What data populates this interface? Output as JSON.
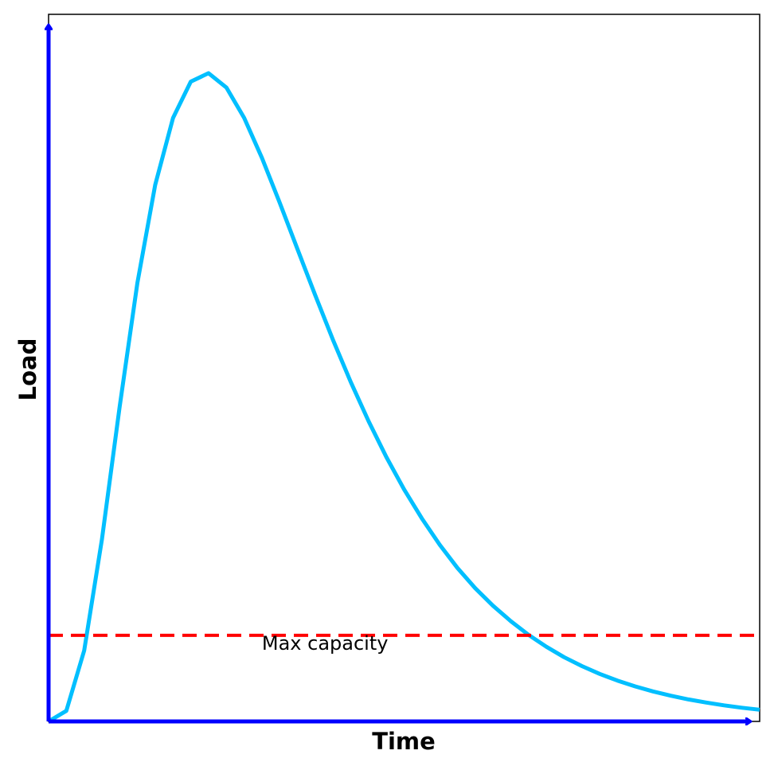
{
  "chart_data": {
    "type": "line",
    "title": "",
    "xlabel": "Time",
    "ylabel": "Load",
    "xlim": [
      0,
      10
    ],
    "ylim": [
      0,
      1.1
    ],
    "grid": false,
    "ticks": "none",
    "series": [
      {
        "color": "#00bfff",
        "style": "solid",
        "x": [
          0,
          0.25,
          0.5,
          0.75,
          1,
          1.25,
          1.5,
          1.75,
          2,
          2.25,
          2.5,
          2.75,
          3,
          3.25,
          3.5,
          3.75,
          4,
          4.25,
          4.5,
          4.75,
          5,
          5.25,
          5.5,
          5.75,
          6,
          6.25,
          6.5,
          6.75,
          7,
          7.25,
          7.5,
          7.75,
          8,
          8.25,
          8.5,
          8.75,
          9,
          9.25,
          9.5,
          9.75,
          10
        ],
        "y": [
          0,
          0.0165,
          0.1101,
          0.2832,
          0.4898,
          0.6827,
          0.8347,
          0.9389,
          0.9953,
          1.0085,
          0.9862,
          0.939,
          0.8768,
          0.8072,
          0.7349,
          0.663,
          0.5935,
          0.5279,
          0.467,
          0.4113,
          0.3608,
          0.3157,
          0.2749,
          0.2387,
          0.2073,
          0.18,
          0.1559,
          0.1347,
          0.1162,
          0.1,
          0.0861,
          0.074,
          0.0635,
          0.0545,
          0.0467,
          0.04,
          0.0342,
          0.0293,
          0.025,
          0.0213,
          0.0182
        ]
      }
    ],
    "threshold": {
      "y": 0.134,
      "color": "#ff0000",
      "style": "dashed",
      "label": "Max capacity"
    },
    "axis_color": "#0000ff"
  }
}
